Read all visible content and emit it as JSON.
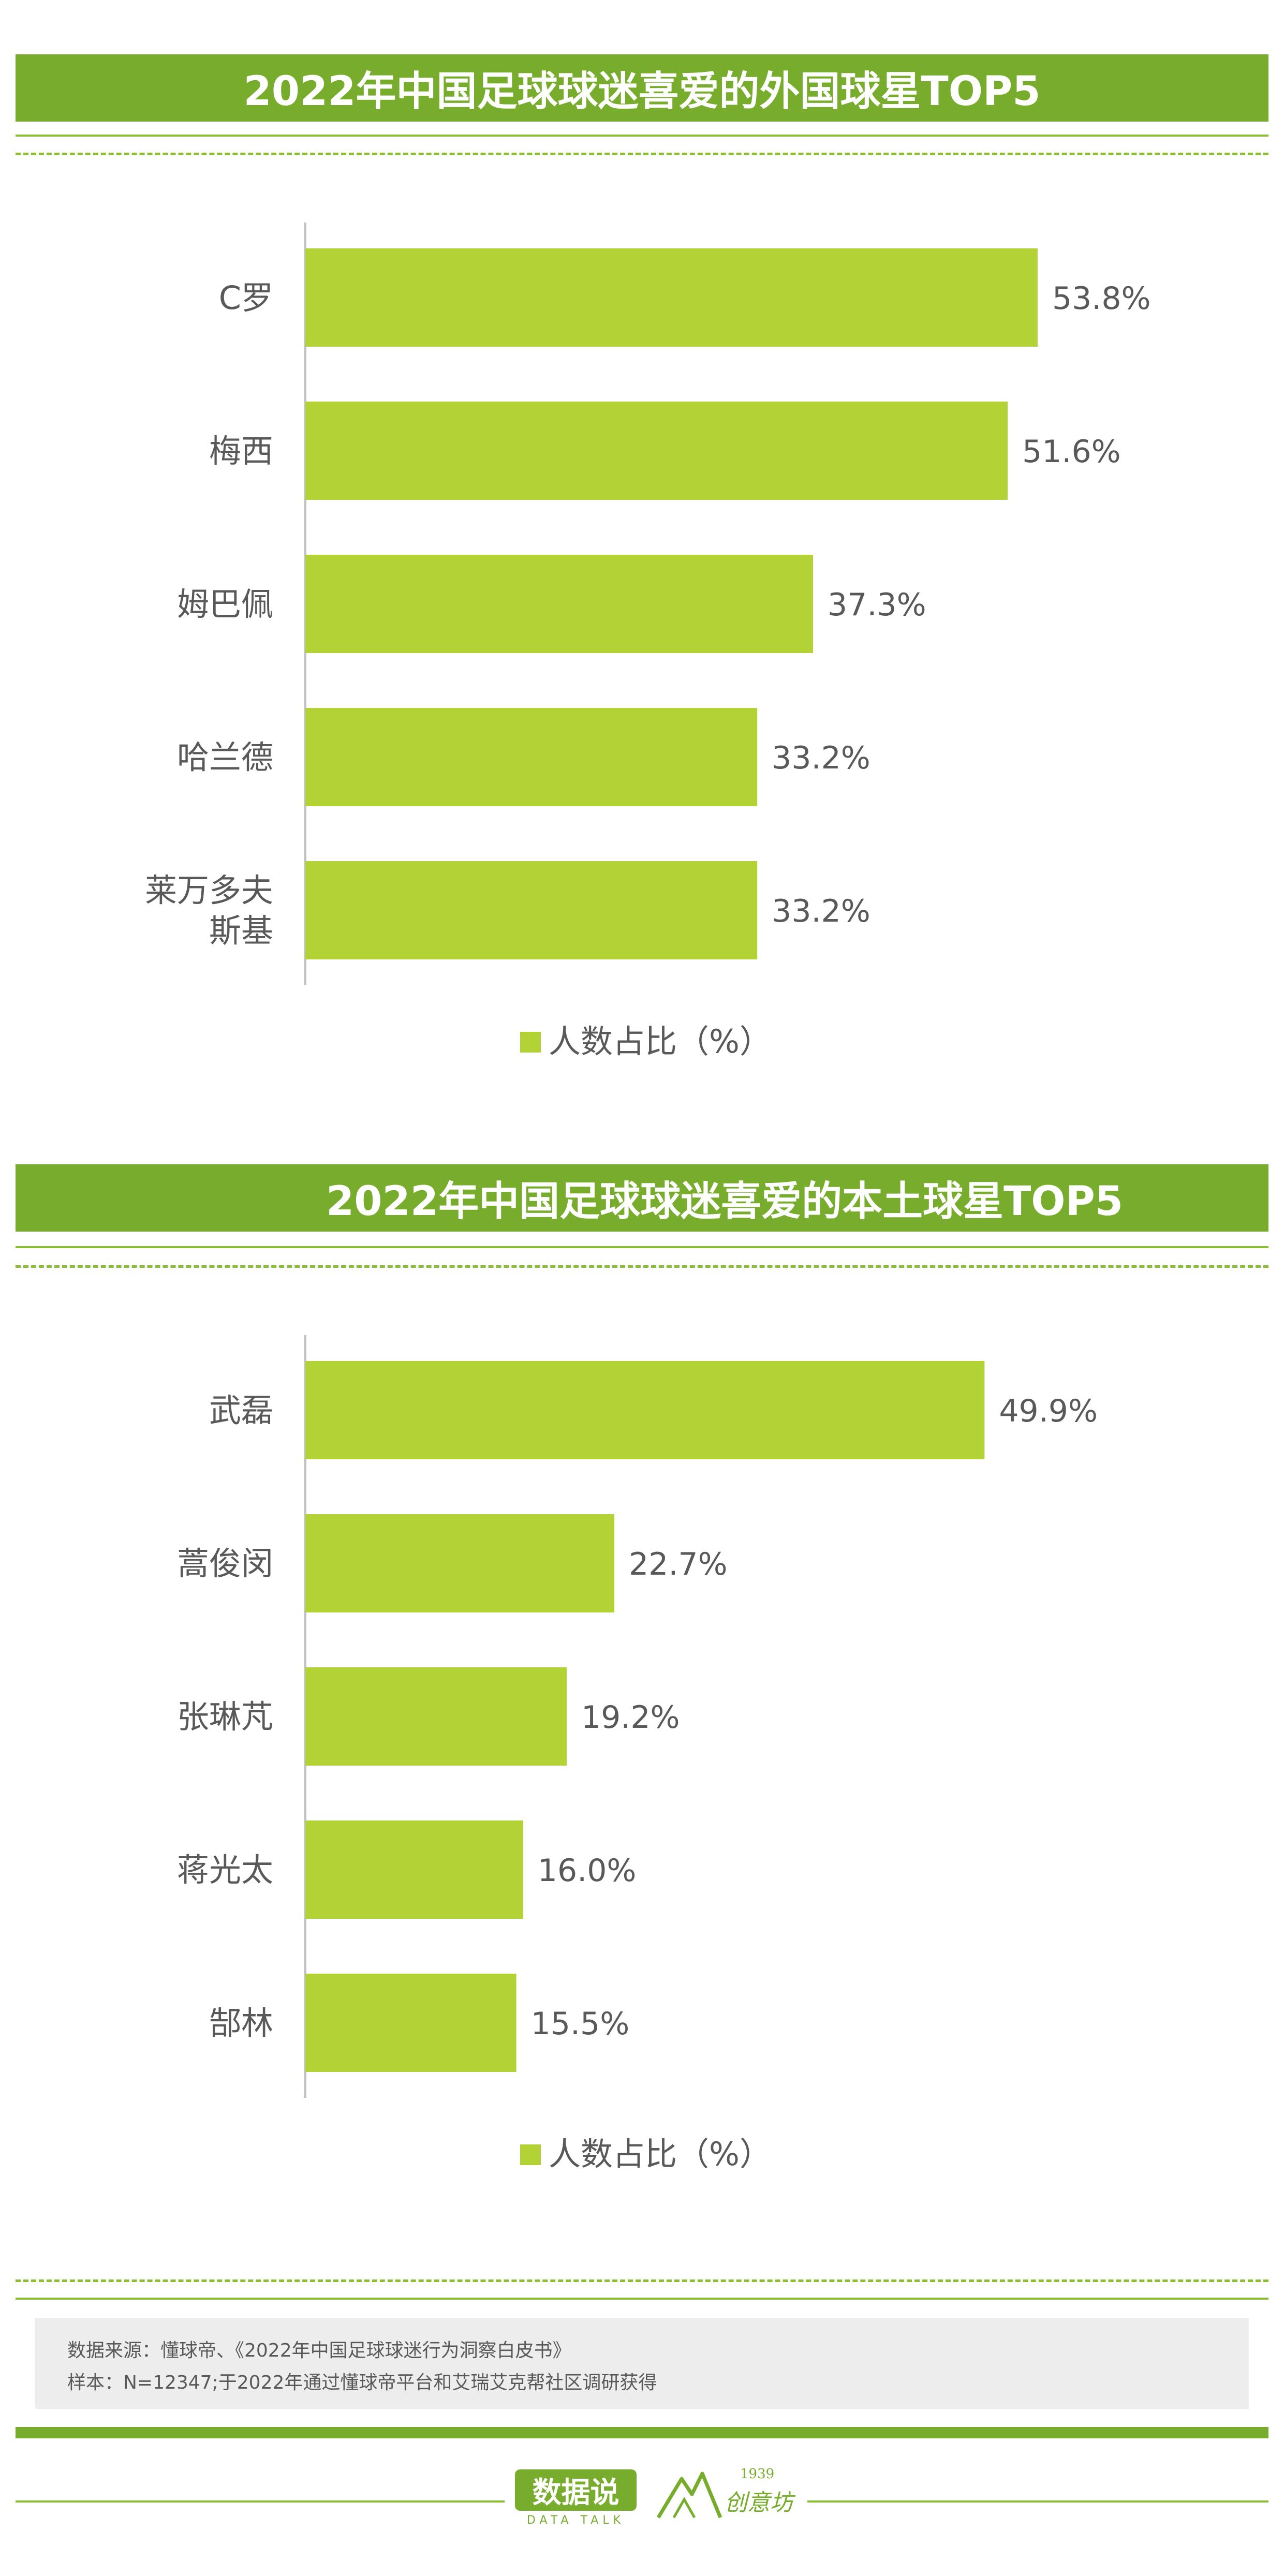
{
  "chart_data": [
    {
      "type": "bar",
      "orientation": "horizontal",
      "title": "2022年中国足球球迷喜爱的外国球星TOP5",
      "categories": [
        "C罗",
        "梅西",
        "姆巴佩",
        "哈兰德",
        "莱万多夫斯基"
      ],
      "category_lines": [
        [
          "C罗"
        ],
        [
          "梅西"
        ],
        [
          "姆巴佩"
        ],
        [
          "哈兰德"
        ],
        [
          "莱万多夫",
          "斯基"
        ]
      ],
      "series": [
        {
          "name": "人数占比（%）",
          "values": [
            53.8,
            51.6,
            37.3,
            33.2,
            33.2
          ],
          "color": "#b2d235"
        }
      ],
      "value_labels": [
        "53.8%",
        "51.6%",
        "37.3%",
        "33.2%",
        "33.2%"
      ],
      "xlim": [
        0,
        64
      ],
      "legend_position": "bottom",
      "grid": false
    },
    {
      "type": "bar",
      "orientation": "horizontal",
      "title": "2022年中国足球球迷喜爱的本土球星TOP5",
      "categories": [
        "武磊",
        "蒿俊闵",
        "张琳芃",
        "蒋光太",
        "郜林"
      ],
      "category_lines": [
        [
          "武磊"
        ],
        [
          "蒿俊闵"
        ],
        [
          "张琳芃"
        ],
        [
          "蒋光太"
        ],
        [
          "郜林"
        ]
      ],
      "series": [
        {
          "name": "人数占比（%）",
          "values": [
            49.9,
            22.7,
            19.2,
            16.0,
            15.5
          ],
          "color": "#b2d235"
        }
      ],
      "value_labels": [
        "49.9%",
        "22.7%",
        "19.2%",
        "16.0%",
        "15.5%"
      ],
      "xlim": [
        0,
        64
      ],
      "legend_position": "bottom",
      "grid": false
    }
  ],
  "footer": {
    "source": "数据来源：懂球帝、《2022年中国足球球迷行为洞察白皮书》",
    "sample": "样本：N=12347;于2022年通过懂球帝平台和艾瑞艾克帮社区调研获得",
    "logo_main": "数据说",
    "logo_sub": "DATA TALK",
    "logo2_text": "创意坊",
    "logo2_year": "1939"
  },
  "colors": {
    "banner": "#78ac2c",
    "bar": "#b2d235",
    "rule": "#8bbd35"
  }
}
